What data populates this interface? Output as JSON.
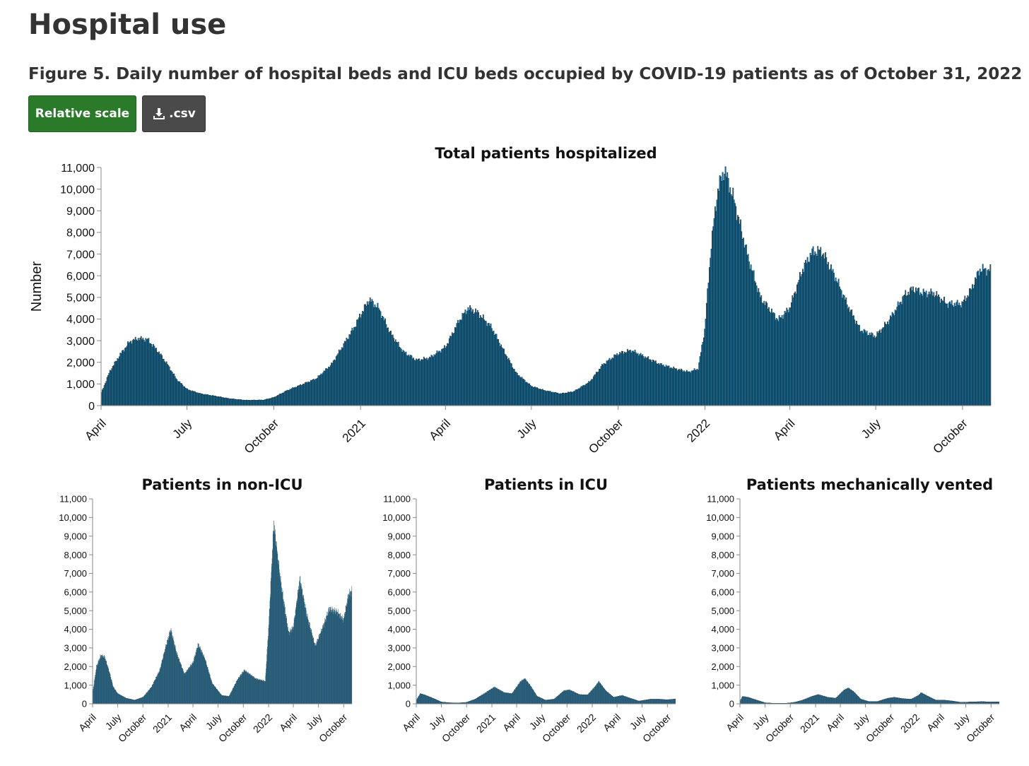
{
  "page": {
    "title": "Hospital use"
  },
  "figure": {
    "title": "Figure 5. Daily number of hospital beds and ICU beds occupied by COVID-19 patients as of October 31, 2022"
  },
  "toolbar": {
    "relative_label": "Relative scale",
    "download_label": ".csv",
    "download_icon": "download-icon"
  },
  "colors": {
    "bar_fill": "#1d6e96",
    "bar_stroke": "#0c2a3a",
    "button_green": "#2a7a2a",
    "button_dark": "#4a4a4a"
  },
  "chart_data": [
    {
      "id": "total",
      "type": "bar",
      "title": "Total patients hospitalized",
      "ylabel": "Number",
      "ylim": [
        0,
        11000
      ],
      "yticks": [
        "0",
        "1,000",
        "2,000",
        "3,000",
        "4,000",
        "5,000",
        "6,000",
        "7,000",
        "8,000",
        "9,000",
        "10,000",
        "11,000"
      ],
      "xtick_labels": [
        "April",
        "July",
        "October",
        "2021",
        "April",
        "July",
        "October",
        "2022",
        "April",
        "July",
        "October"
      ],
      "x_range": [
        "2020-04-01",
        "2022-10-31"
      ],
      "series": [
        {
          "points": [
            [
              "2020-04-01",
              600
            ],
            [
              "2020-04-10",
              1600
            ],
            [
              "2020-04-20",
              2300
            ],
            [
              "2020-05-01",
              2950
            ],
            [
              "2020-05-10",
              3100
            ],
            [
              "2020-05-20",
              3050
            ],
            [
              "2020-06-01",
              2450
            ],
            [
              "2020-06-10",
              1900
            ],
            [
              "2020-06-20",
              1200
            ],
            [
              "2020-07-01",
              750
            ],
            [
              "2020-07-15",
              550
            ],
            [
              "2020-08-01",
              430
            ],
            [
              "2020-08-15",
              320
            ],
            [
              "2020-09-01",
              250
            ],
            [
              "2020-09-20",
              260
            ],
            [
              "2020-10-01",
              380
            ],
            [
              "2020-10-15",
              700
            ],
            [
              "2020-11-01",
              1000
            ],
            [
              "2020-11-15",
              1250
            ],
            [
              "2020-12-01",
              1900
            ],
            [
              "2020-12-15",
              2900
            ],
            [
              "2020-12-25",
              3600
            ],
            [
              "2021-01-01",
              4200
            ],
            [
              "2021-01-10",
              4900
            ],
            [
              "2021-01-20",
              4500
            ],
            [
              "2021-02-01",
              3400
            ],
            [
              "2021-02-15",
              2500
            ],
            [
              "2021-03-01",
              2100
            ],
            [
              "2021-03-15",
              2200
            ],
            [
              "2021-04-01",
              2700
            ],
            [
              "2021-04-15",
              3900
            ],
            [
              "2021-04-25",
              4500
            ],
            [
              "2021-05-05",
              4300
            ],
            [
              "2021-05-20",
              3600
            ],
            [
              "2021-06-01",
              2600
            ],
            [
              "2021-06-15",
              1500
            ],
            [
              "2021-07-01",
              900
            ],
            [
              "2021-07-15",
              700
            ],
            [
              "2021-08-01",
              550
            ],
            [
              "2021-08-15",
              650
            ],
            [
              "2021-09-01",
              1100
            ],
            [
              "2021-09-15",
              1900
            ],
            [
              "2021-10-01",
              2400
            ],
            [
              "2021-10-15",
              2550
            ],
            [
              "2021-11-01",
              2200
            ],
            [
              "2021-11-15",
              1900
            ],
            [
              "2021-12-01",
              1700
            ],
            [
              "2021-12-15",
              1550
            ],
            [
              "2021-12-25",
              1700
            ],
            [
              "2022-01-01",
              3500
            ],
            [
              "2022-01-08",
              7500
            ],
            [
              "2022-01-15",
              10000
            ],
            [
              "2022-01-22",
              10900
            ],
            [
              "2022-02-01",
              9500
            ],
            [
              "2022-02-15",
              7000
            ],
            [
              "2022-03-01",
              5000
            ],
            [
              "2022-03-20",
              3950
            ],
            [
              "2022-04-01",
              4500
            ],
            [
              "2022-04-15",
              6300
            ],
            [
              "2022-04-25",
              7100
            ],
            [
              "2022-05-05",
              7150
            ],
            [
              "2022-05-20",
              5900
            ],
            [
              "2022-06-01",
              4700
            ],
            [
              "2022-06-15",
              3500
            ],
            [
              "2022-07-01",
              3200
            ],
            [
              "2022-07-15",
              3900
            ],
            [
              "2022-08-01",
              5100
            ],
            [
              "2022-08-10",
              5400
            ],
            [
              "2022-08-20",
              5200
            ],
            [
              "2022-09-01",
              5200
            ],
            [
              "2022-09-15",
              4700
            ],
            [
              "2022-10-01",
              4700
            ],
            [
              "2022-10-10",
              5300
            ],
            [
              "2022-10-20",
              6300
            ],
            [
              "2022-10-31",
              6250
            ]
          ]
        }
      ]
    },
    {
      "id": "non-icu",
      "type": "bar",
      "title": "Patients in non-ICU",
      "ylim": [
        0,
        11000
      ],
      "yticks": [
        "0",
        "1,000",
        "2,000",
        "3,000",
        "4,000",
        "5,000",
        "6,000",
        "7,000",
        "8,000",
        "9,000",
        "10,000",
        "11,000"
      ],
      "xtick_labels": [
        "April",
        "July",
        "October",
        "2021",
        "April",
        "July",
        "October",
        "2022",
        "April",
        "July",
        "October"
      ],
      "x_range": [
        "2020-04-01",
        "2022-10-31"
      ],
      "series": [
        {
          "points": [
            [
              "2020-04-01",
              600
            ],
            [
              "2020-04-15",
              2000
            ],
            [
              "2020-05-01",
              2600
            ],
            [
              "2020-05-15",
              2500
            ],
            [
              "2020-06-01",
              1700
            ],
            [
              "2020-06-15",
              900
            ],
            [
              "2020-07-01",
              550
            ],
            [
              "2020-08-01",
              300
            ],
            [
              "2020-09-01",
              200
            ],
            [
              "2020-10-01",
              350
            ],
            [
              "2020-11-01",
              900
            ],
            [
              "2020-12-01",
              1800
            ],
            [
              "2020-12-20",
              2900
            ],
            [
              "2021-01-10",
              4000
            ],
            [
              "2021-02-01",
              2700
            ],
            [
              "2021-03-01",
              1600
            ],
            [
              "2021-04-01",
              2200
            ],
            [
              "2021-04-20",
              3200
            ],
            [
              "2021-05-15",
              2400
            ],
            [
              "2021-06-10",
              1100
            ],
            [
              "2021-07-15",
              450
            ],
            [
              "2021-08-10",
              400
            ],
            [
              "2021-09-10",
              1300
            ],
            [
              "2021-10-05",
              1800
            ],
            [
              "2021-11-15",
              1350
            ],
            [
              "2021-12-20",
              1200
            ],
            [
              "2022-01-01",
              4000
            ],
            [
              "2022-01-20",
              9700
            ],
            [
              "2022-02-15",
              6500
            ],
            [
              "2022-03-15",
              3800
            ],
            [
              "2022-04-01",
              4100
            ],
            [
              "2022-04-25",
              6700
            ],
            [
              "2022-05-20",
              4800
            ],
            [
              "2022-06-20",
              3100
            ],
            [
              "2022-07-20",
              4200
            ],
            [
              "2022-08-10",
              5100
            ],
            [
              "2022-09-10",
              4900
            ],
            [
              "2022-10-01",
              4500
            ],
            [
              "2022-10-20",
              5900
            ],
            [
              "2022-10-31",
              6050
            ]
          ]
        }
      ]
    },
    {
      "id": "icu",
      "type": "bar",
      "title": "Patients in ICU",
      "ylim": [
        0,
        11000
      ],
      "yticks": [
        "0",
        "1,000",
        "2,000",
        "3,000",
        "4,000",
        "5,000",
        "6,000",
        "7,000",
        "8,000",
        "9,000",
        "10,000",
        "11,000"
      ],
      "xtick_labels": [
        "April",
        "July",
        "October",
        "2021",
        "April",
        "July",
        "October",
        "2022",
        "April",
        "July",
        "October"
      ],
      "x_range": [
        "2020-04-01",
        "2022-10-31"
      ],
      "series": [
        {
          "points": [
            [
              "2020-04-01",
              200
            ],
            [
              "2020-04-15",
              550
            ],
            [
              "2020-05-01",
              480
            ],
            [
              "2020-06-01",
              300
            ],
            [
              "2020-07-01",
              100
            ],
            [
              "2020-08-01",
              60
            ],
            [
              "2020-09-01",
              50
            ],
            [
              "2020-10-01",
              80
            ],
            [
              "2020-11-01",
              250
            ],
            [
              "2020-12-15",
              650
            ],
            [
              "2021-01-10",
              900
            ],
            [
              "2021-02-15",
              600
            ],
            [
              "2021-03-15",
              550
            ],
            [
              "2021-04-15",
              1200
            ],
            [
              "2021-05-01",
              1350
            ],
            [
              "2021-05-20",
              1000
            ],
            [
              "2021-06-15",
              400
            ],
            [
              "2021-07-15",
              200
            ],
            [
              "2021-08-15",
              250
            ],
            [
              "2021-09-20",
              700
            ],
            [
              "2021-10-10",
              750
            ],
            [
              "2021-11-15",
              500
            ],
            [
              "2021-12-15",
              480
            ],
            [
              "2022-01-10",
              900
            ],
            [
              "2022-01-25",
              1200
            ],
            [
              "2022-02-20",
              700
            ],
            [
              "2022-03-20",
              350
            ],
            [
              "2022-04-20",
              450
            ],
            [
              "2022-05-20",
              300
            ],
            [
              "2022-06-20",
              150
            ],
            [
              "2022-08-01",
              250
            ],
            [
              "2022-09-01",
              250
            ],
            [
              "2022-10-01",
              220
            ],
            [
              "2022-10-31",
              260
            ]
          ]
        }
      ]
    },
    {
      "id": "vented",
      "type": "bar",
      "title": "Patients mechanically vented",
      "ylim": [
        0,
        11000
      ],
      "yticks": [
        "0",
        "1,000",
        "2,000",
        "3,000",
        "4,000",
        "5,000",
        "6,000",
        "7,000",
        "8,000",
        "9,000",
        "10,000",
        "11,000"
      ],
      "xtick_labels": [
        "April",
        "July",
        "October",
        "2021",
        "April",
        "July",
        "October",
        "2022",
        "April",
        "July",
        "October"
      ],
      "x_range": [
        "2020-04-01",
        "2022-10-31"
      ],
      "series": [
        {
          "points": [
            [
              "2020-04-01",
              150
            ],
            [
              "2020-04-10",
              400
            ],
            [
              "2020-05-01",
              350
            ],
            [
              "2020-06-01",
              200
            ],
            [
              "2020-07-01",
              60
            ],
            [
              "2020-08-01",
              30
            ],
            [
              "2020-09-15",
              30
            ],
            [
              "2020-10-15",
              80
            ],
            [
              "2020-11-15",
              200
            ],
            [
              "2020-12-15",
              380
            ],
            [
              "2021-01-10",
              500
            ],
            [
              "2021-02-15",
              350
            ],
            [
              "2021-03-15",
              300
            ],
            [
              "2021-04-15",
              750
            ],
            [
              "2021-04-30",
              850
            ],
            [
              "2021-05-20",
              650
            ],
            [
              "2021-06-15",
              250
            ],
            [
              "2021-07-15",
              120
            ],
            [
              "2021-08-15",
              130
            ],
            [
              "2021-09-20",
              300
            ],
            [
              "2021-10-15",
              350
            ],
            [
              "2021-11-15",
              280
            ],
            [
              "2021-12-15",
              250
            ],
            [
              "2022-01-10",
              450
            ],
            [
              "2022-01-20",
              600
            ],
            [
              "2022-02-15",
              400
            ],
            [
              "2022-03-15",
              200
            ],
            [
              "2022-04-15",
              200
            ],
            [
              "2022-05-15",
              150
            ],
            [
              "2022-06-15",
              80
            ],
            [
              "2022-08-01",
              110
            ],
            [
              "2022-09-01",
              120
            ],
            [
              "2022-10-01",
              100
            ],
            [
              "2022-10-31",
              110
            ]
          ]
        }
      ]
    }
  ]
}
